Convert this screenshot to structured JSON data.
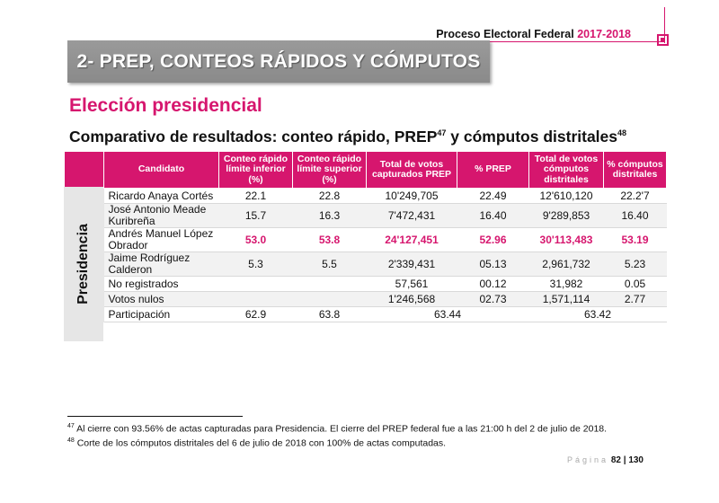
{
  "header": {
    "process": "Proceso Electoral Federal",
    "year": "2017-2018"
  },
  "section": {
    "title": "2- PREP, CONTEOS RÁPIDOS Y CÓMPUTOS"
  },
  "subtitle": "Elección presidencial",
  "table_title": {
    "text_a": "Comparativo de resultados: conteo rápido, PREP",
    "ref_a": "47",
    "text_b": " y cómputos distritales",
    "ref_b": "48"
  },
  "vertical_label": "Presidencia",
  "table": {
    "headers": [
      "Candidato",
      "Conteo rápido límite inferior (%)",
      "Conteo rápido límite superior (%)",
      "Total de votos capturados PREP",
      "% PREP",
      "Total de votos cómputos distritales",
      "% cómputos distritales"
    ],
    "rows": [
      {
        "name": "Ricardo Anaya Cortés",
        "inf": "22.1",
        "sup": "22.8",
        "prep_votes": "10'249,705",
        "prep_pct": "22.49",
        "comp_votes": "12'610,120",
        "comp_pct": "22.2'7"
      },
      {
        "name": "José Antonio Meade Kuribreña",
        "inf": "15.7",
        "sup": "16.3",
        "prep_votes": "7'472,431",
        "prep_pct": "16.40",
        "comp_votes": "9'289,853",
        "comp_pct": "16.40"
      },
      {
        "name": "Andrés Manuel López Obrador",
        "inf": "53.0",
        "sup": "53.8",
        "prep_votes": "24'127,451",
        "prep_pct": "52.96",
        "comp_votes": "30'113,483",
        "comp_pct": "53.19"
      },
      {
        "name": "Jaime Rodríguez Calderon",
        "inf": "5.3",
        "sup": "5.5",
        "prep_votes": "2'339,431",
        "prep_pct": "05.13",
        "comp_votes": "2,961,732",
        "comp_pct": "5.23"
      },
      {
        "name": "No registrados",
        "inf": "",
        "sup": "",
        "prep_votes": "57,561",
        "prep_pct": "00.12",
        "comp_votes": "31,982",
        "comp_pct": "0.05"
      },
      {
        "name": "Votos nulos",
        "inf": "",
        "sup": "",
        "prep_votes": "1'246,568",
        "prep_pct": "02.73",
        "comp_votes": "1,571,114",
        "comp_pct": "2.77"
      }
    ],
    "participation": {
      "name": "Participación",
      "inf": "62.9",
      "sup": "63.8",
      "prep": "63.44",
      "comp": "63.42"
    }
  },
  "footnotes": {
    "fn1_ref": "47",
    "fn1_text": " Al cierre con 93.56% de actas capturadas para Presidencia. El cierre del PREP federal fue a las 21:00 h del 2 de julio de 2018.",
    "fn2_ref": "48",
    "fn2_text": " Corte de los cómputos distritales del 6 de julio de 2018 con 100% de actas computadas."
  },
  "page": {
    "label": "Página",
    "current": "82",
    "separator": "|",
    "total": "130"
  },
  "colors": {
    "accent": "#d6166e",
    "banner": "#8f8f8f",
    "row_alt": "#f2f2f2"
  }
}
